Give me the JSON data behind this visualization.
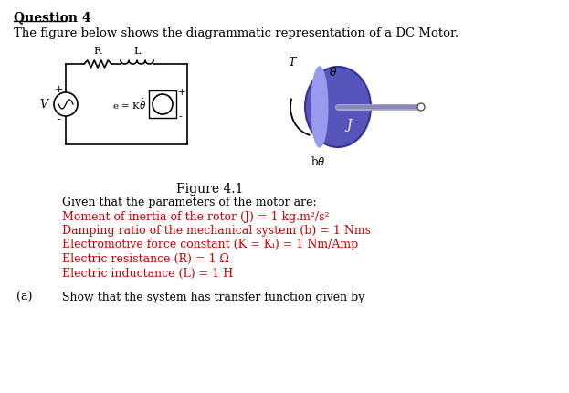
{
  "title": "Question 4",
  "subtitle": "The figure below shows the diagrammatic representation of a DC Motor.",
  "figure_label": "Figure 4.1",
  "params_intro": "Given that the parameters of the motor are:",
  "params": [
    "Moment of inertia of the rotor (J) = 1 kg.m²/s²",
    "Damping ratio of the mechanical system (b) = 1 Nms",
    "Electromotive force constant (K = Kᵢ) = 1 Nm/Amp",
    "Electric resistance (R) = 1 Ω",
    "Electric inductance (L) = 1 H"
  ],
  "part_a_label": "(a)",
  "part_a_text": "Show that the system has transfer function given by",
  "bg_color": "#ffffff",
  "text_color": "#000000",
  "red_color": "#cc0000",
  "disk_color": "#5555bb",
  "disk_edge_color": "#9999ee",
  "disk_dark_edge": "#333399"
}
